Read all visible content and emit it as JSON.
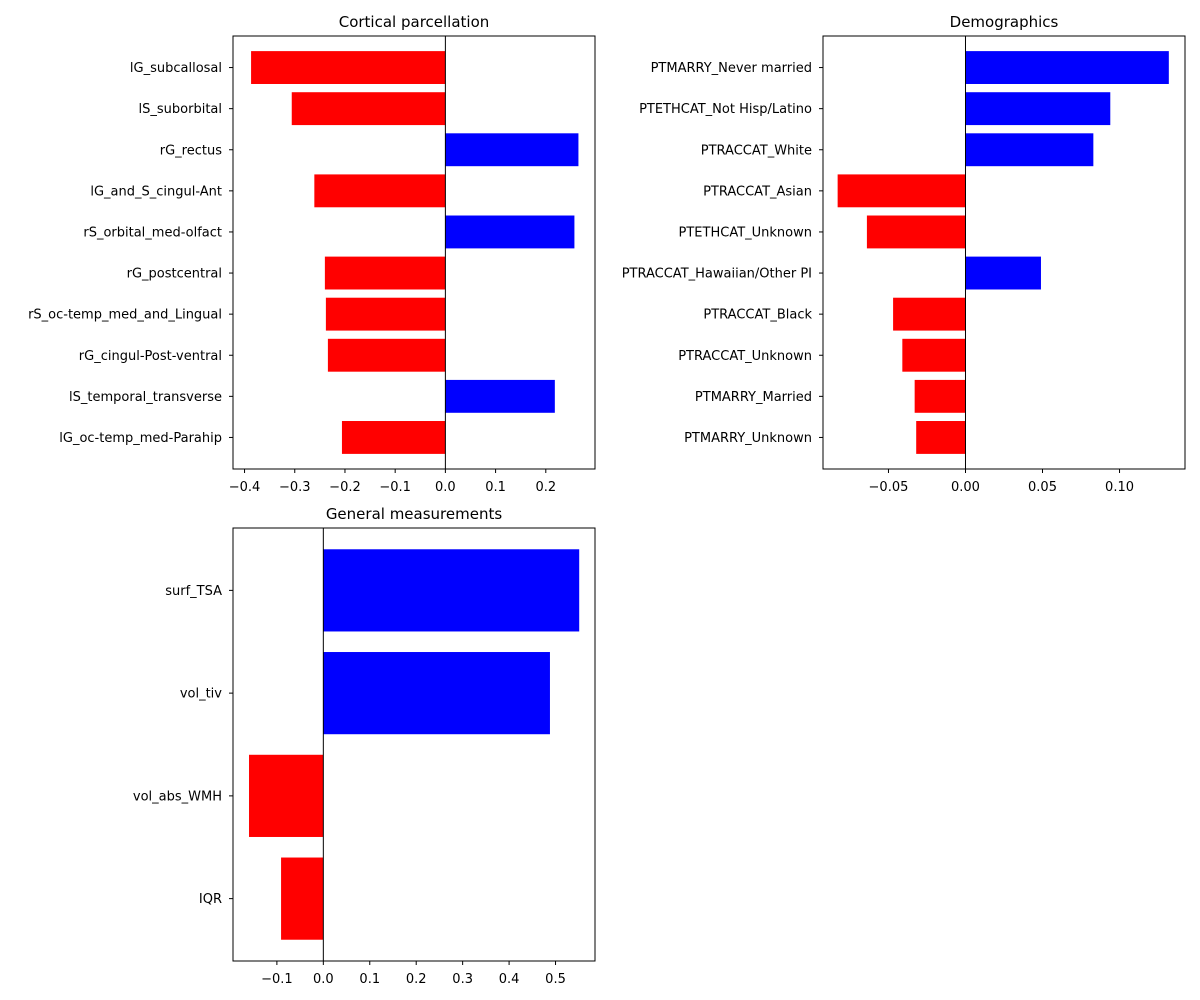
{
  "colors": {
    "positive": "#0000ff",
    "negative": "#ff0000",
    "axis": "#000000"
  },
  "chart_data": [
    {
      "type": "bar",
      "orientation": "horizontal",
      "title": "Cortical parcellation",
      "categories": [
        "lG_subcallosal",
        "lS_suborbital",
        "rG_rectus",
        "lG_and_S_cingul-Ant",
        "rS_orbital_med-olfact",
        "rG_postcentral",
        "rS_oc-temp_med_and_Lingual",
        "rG_cingul-Post-ventral",
        "lS_temporal_transverse",
        "lG_oc-temp_med-Parahip"
      ],
      "values": [
        -0.387,
        -0.306,
        0.265,
        -0.261,
        0.257,
        -0.24,
        -0.238,
        -0.234,
        0.218,
        -0.206
      ],
      "xlim": [
        -0.423,
        0.298
      ],
      "xticks": [
        -0.4,
        -0.3,
        -0.2,
        -0.1,
        0.0,
        0.1,
        0.2
      ],
      "xtick_labels": [
        "−0.4",
        "−0.3",
        "−0.2",
        "−0.1",
        "0.0",
        "0.1",
        "0.2"
      ],
      "xlabel": "",
      "ylabel": "",
      "grid": false
    },
    {
      "type": "bar",
      "orientation": "horizontal",
      "title": "Demographics",
      "categories": [
        "PTMARRY_Never married",
        "PTETHCAT_Not Hisp/Latino",
        "PTRACCAT_White",
        "PTRACCAT_Asian",
        "PTETHCAT_Unknown",
        "PTRACCAT_Hawaiian/Other PI",
        "PTRACCAT_Black",
        "PTRACCAT_Unknown",
        "PTMARRY_Married",
        "PTMARRY_Unknown"
      ],
      "values": [
        0.132,
        0.094,
        0.083,
        -0.083,
        -0.064,
        0.049,
        -0.047,
        -0.041,
        -0.033,
        -0.032
      ],
      "xlim": [
        -0.0925,
        0.1425
      ],
      "xticks": [
        -0.05,
        0.0,
        0.05,
        0.1
      ],
      "xtick_labels": [
        "−0.05",
        "0.00",
        "0.05",
        "0.10"
      ],
      "xlabel": "",
      "ylabel": "",
      "grid": false
    },
    {
      "type": "bar",
      "orientation": "horizontal",
      "title": "General measurements",
      "categories": [
        "surf_TSA",
        "vol_tiv",
        "vol_abs_WMH",
        "IQR"
      ],
      "values": [
        0.551,
        0.488,
        -0.16,
        -0.091
      ],
      "xlim": [
        -0.1945,
        0.585
      ],
      "xticks": [
        -0.1,
        0.0,
        0.1,
        0.2,
        0.3,
        0.4,
        0.5
      ],
      "xtick_labels": [
        "−0.1",
        "0.0",
        "0.1",
        "0.2",
        "0.3",
        "0.4",
        "0.5"
      ],
      "xlabel": "",
      "ylabel": "",
      "grid": false
    }
  ]
}
